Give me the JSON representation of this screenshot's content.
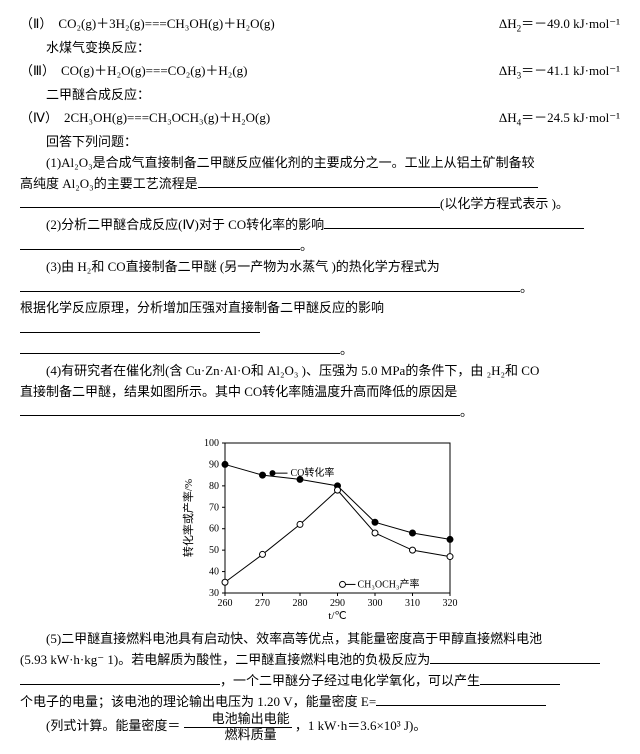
{
  "eqs": {
    "II": {
      "label": "（Ⅱ）",
      "formula": "CO₂(g)＋3H₂(g)===CH₃OH(g)＋H₂O(g)",
      "dH_label": "ΔH",
      "dH_sub": "2",
      "dH_val": "＝－49.0  kJ·mol⁻¹"
    },
    "II_note": "水煤气变换反应：",
    "III": {
      "label": "（Ⅲ）",
      "formula": "CO(g)＋H₂O(g)===CO₂(g)＋H₂(g)",
      "dH_label": "ΔH",
      "dH_sub": "3",
      "dH_val": "＝－41.1  kJ·mol⁻¹"
    },
    "III_note": "二甲醚合成反应：",
    "IV": {
      "label": "（Ⅳ）",
      "formula": "2CH₃OH(g)===CH₃OCH₃(g)＋H₂O(g)",
      "dH_label": "ΔH",
      "dH_sub": "4",
      "dH_val": "＝－24.5  kJ·mol⁻¹"
    }
  },
  "answer_prompt": "回答下列问题：",
  "q1a": "(1)Al₂O₃是合成气直接制备二甲醚反应催化剂的主要成分之一。工业上从铝土矿制备较",
  "q1b": "高纯度  Al₂O₃的主要工艺流程是",
  "q1c": "(以化学方程式表示   )。",
  "q2a": "(2)分析二甲醚合成反应(Ⅳ)对于  CO转化率的影响",
  "q2b": "。",
  "q3a": "(3)由      H₂和        CO直接制备二甲醚                 (另一产物为水蒸气              )的热化学方程式为",
  "q3b": "。",
  "q3c": "根据化学反应原理，分析增加压强对直接制备二甲醚反应的影响",
  "q3d": "。",
  "q4a": "(4)有研究者在催化剂(含  Cu·Zn·Al·O和    Al₂O₃ )、压强为  5.0 MPa的条件下，由 ₂H₂和     CO",
  "q4b": "直接制备二甲醚，结果如图所示。其中                      CO转化率随温度升高而降低的原因是",
  "q4c": "。",
  "q5a": "(5)二甲醚直接燃料电池具有启动快、效率高等优点，其能量密度高于甲醇直接燃料电池",
  "q5b": "(5.93  kW·h·kg⁻ 1)。若电解质为酸性，二甲醚直接燃料电池的负极反应为",
  "q5c": "，一个二甲醚分子经过电化学氧化，可以产生",
  "q5d": "个电子的电量；该电池的理论输出电压为  1.20 V，能量密度  E=",
  "q5e": "(列式计算。能量密度＝",
  "frac_num": "电池输出电能",
  "frac_den": "燃料质量",
  "q5f": "，1 kW·h＝3.6×10³ J)。",
  "chart": {
    "title_series1": "CO转化率",
    "title_series2": "CH₃OCH₃产率",
    "ylabel": "转化率或产率/%",
    "xlabel": "t/℃",
    "xvals": [
      260,
      270,
      280,
      290,
      300,
      310,
      320
    ],
    "yrange": [
      30,
      100
    ],
    "yticks": [
      30,
      40,
      50,
      60,
      70,
      80,
      90,
      100
    ],
    "co": [
      90,
      85,
      83,
      80,
      63,
      58,
      55
    ],
    "dme": [
      35,
      48,
      62,
      78,
      58,
      50,
      47
    ],
    "color_border": "#000",
    "color_series": "#000",
    "marker_co": "filled-circle",
    "marker_dme": "open-circle"
  }
}
